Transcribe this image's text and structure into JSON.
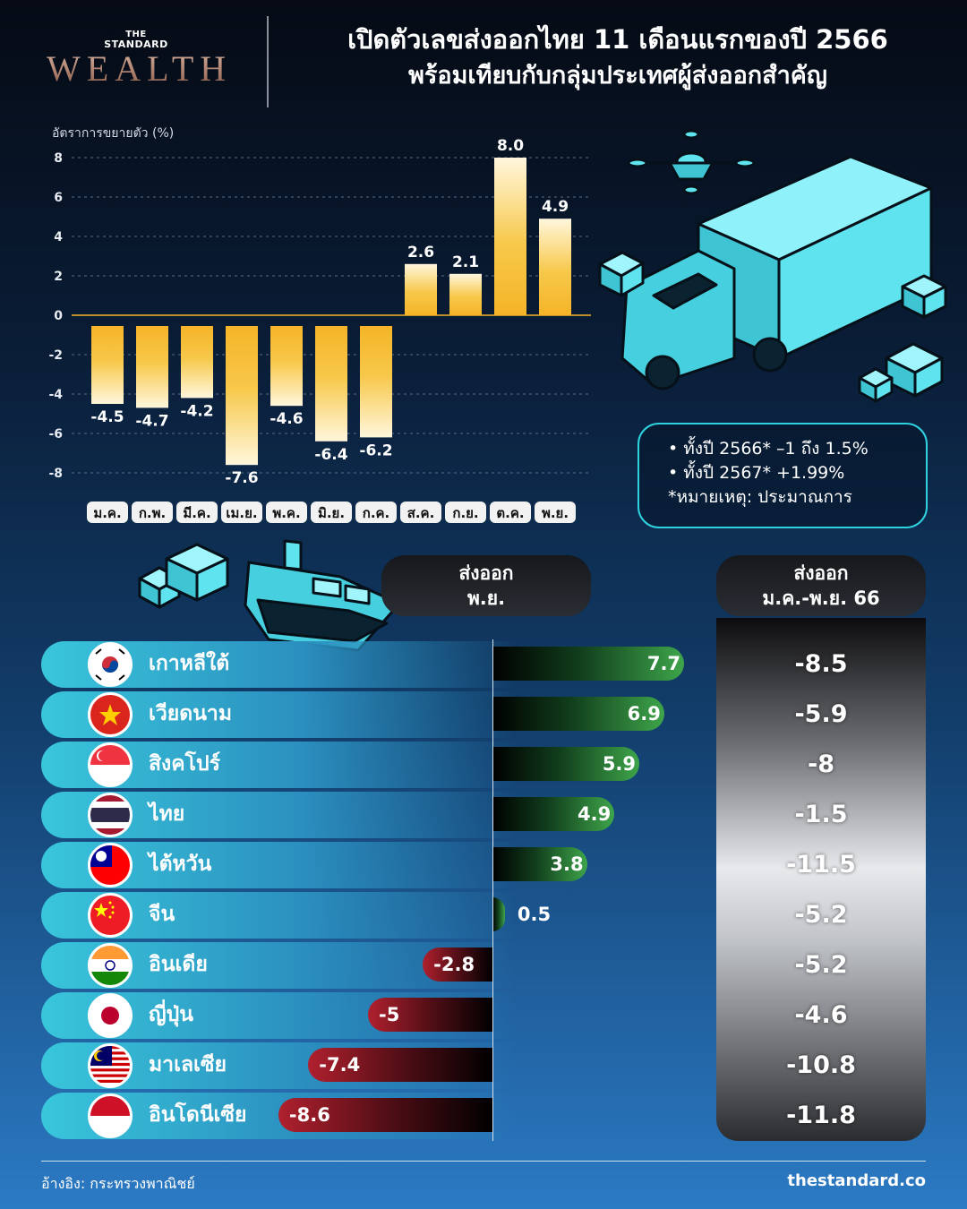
{
  "brand": {
    "the": "THE",
    "standard": "STANDARD",
    "wealth": "WEALTH"
  },
  "title": {
    "line1": "เปิดตัวเลขส่งออกไทย 11 เดือนแรกของปี 2566",
    "line2": "พร้อมเทียบกับกลุ่มประเทศผู้ส่งออกสำคัญ"
  },
  "notes": {
    "line1": "• ทั้งปี 2566* –1 ถึง 1.5%",
    "line2": "• ทั้งปี 2567* +1.99%",
    "line3": "*หมายเหตุ: ประมาณการ"
  },
  "headers": {
    "nov_line1": "ส่งออก",
    "nov_line2": "พ.ย.",
    "ytd_line1": "ส่งออก",
    "ytd_line2": "ม.ค.-พ.ย. 66"
  },
  "footer": {
    "source": "อ้างอิง: กระทรวงพาณิชย์",
    "site": "thestandard.co"
  },
  "colors": {
    "bar_gold": "#f6b428",
    "positive": "#3ea54a",
    "negative": "#b0202e",
    "accent": "#2fd3e0"
  },
  "chart_data": [
    {
      "type": "bar",
      "ylabel": "อัตราการขยายตัว (%)",
      "ylim": [
        -8,
        8
      ],
      "yticks": [
        8,
        6,
        4,
        2,
        0,
        -2,
        -4,
        -6,
        -8
      ],
      "grid": true,
      "categories": [
        "ม.ค.",
        "ก.พ.",
        "มี.ค.",
        "เม.ย.",
        "พ.ค.",
        "มิ.ย.",
        "ก.ค.",
        "ส.ค.",
        "ก.ย.",
        "ต.ค.",
        "พ.ย."
      ],
      "values": [
        -4.5,
        -4.7,
        -4.2,
        -7.6,
        -4.6,
        -6.4,
        -6.2,
        2.6,
        2.1,
        8.0,
        4.9
      ],
      "labels": [
        "-4.5",
        "-4.7",
        "-4.2",
        "-7.6",
        "-4.6",
        "-6.4",
        "-6.2",
        "2.6",
        "2.1",
        "8.0",
        "4.9"
      ]
    },
    {
      "type": "bar",
      "series": [
        {
          "name": "ส่งออก พ.ย.",
          "values": [
            7.7,
            6.9,
            5.9,
            4.9,
            3.8,
            0.5,
            -2.8,
            -5,
            -7.4,
            -8.6
          ]
        },
        {
          "name": "ส่งออก ม.ค.-พ.ย. 66",
          "values": [
            -8.5,
            -5.9,
            -8,
            -1.5,
            -11.5,
            -5.2,
            -5.2,
            -4.6,
            -10.8,
            -11.8
          ]
        }
      ],
      "categories": [
        "เกาหลีใต้",
        "เวียดนาม",
        "สิงคโปร์",
        "ไทย",
        "ไต้หวัน",
        "จีน",
        "อินเดีย",
        "ญี่ปุ่น",
        "มาเลเซีย",
        "อินโดนีเซีย"
      ],
      "nov_labels": [
        "7.7",
        "6.9",
        "5.9",
        "4.9",
        "3.8",
        "0.5",
        "-2.8",
        "-5",
        "-7.4",
        "-8.6"
      ],
      "ytd_labels": [
        "-8.5",
        "-5.9",
        "-8",
        "-1.5",
        "-11.5",
        "-5.2",
        "-5.2",
        "-4.6",
        "-10.8",
        "-11.8"
      ],
      "flags": [
        "korea-flag-icon",
        "vietnam-flag-icon",
        "singapore-flag-icon",
        "thailand-flag-icon",
        "taiwan-flag-icon",
        "china-flag-icon",
        "india-flag-icon",
        "japan-flag-icon",
        "malaysia-flag-icon",
        "indonesia-flag-icon"
      ]
    }
  ]
}
